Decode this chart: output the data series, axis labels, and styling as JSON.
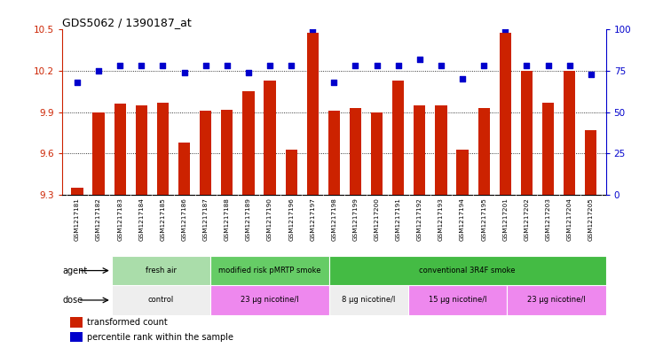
{
  "title": "GDS5062 / 1390187_at",
  "samples": [
    "GSM1217181",
    "GSM1217182",
    "GSM1217183",
    "GSM1217184",
    "GSM1217185",
    "GSM1217186",
    "GSM1217187",
    "GSM1217188",
    "GSM1217189",
    "GSM1217190",
    "GSM1217196",
    "GSM1217197",
    "GSM1217198",
    "GSM1217199",
    "GSM1217200",
    "GSM1217191",
    "GSM1217192",
    "GSM1217193",
    "GSM1217194",
    "GSM1217195",
    "GSM1217201",
    "GSM1217202",
    "GSM1217203",
    "GSM1217204",
    "GSM1217205"
  ],
  "bar_values": [
    9.35,
    9.9,
    9.96,
    9.95,
    9.97,
    9.68,
    9.91,
    9.92,
    10.05,
    10.13,
    9.63,
    10.48,
    9.91,
    9.93,
    9.9,
    10.13,
    9.95,
    9.95,
    9.63,
    9.93,
    10.48,
    10.2,
    9.97,
    10.2,
    9.77
  ],
  "percentile_values": [
    68,
    75,
    78,
    78,
    78,
    74,
    78,
    78,
    74,
    78,
    78,
    100,
    68,
    78,
    78,
    78,
    82,
    78,
    70,
    78,
    100,
    78,
    78,
    78,
    73
  ],
  "bar_color": "#CC2200",
  "percentile_color": "#0000CC",
  "ylim_left": [
    9.3,
    10.5
  ],
  "ylim_right": [
    0,
    100
  ],
  "yticks_left": [
    9.3,
    9.6,
    9.9,
    10.2,
    10.5
  ],
  "yticks_right": [
    0,
    25,
    50,
    75,
    100
  ],
  "grid_values": [
    9.6,
    9.9,
    10.2
  ],
  "agent_groups": [
    {
      "label": "fresh air",
      "start": 0,
      "end": 5,
      "color": "#AADDAA"
    },
    {
      "label": "modified risk pMRTP smoke",
      "start": 5,
      "end": 11,
      "color": "#66CC66"
    },
    {
      "label": "conventional 3R4F smoke",
      "start": 11,
      "end": 25,
      "color": "#44BB44"
    }
  ],
  "dose_groups": [
    {
      "label": "control",
      "start": 0,
      "end": 5,
      "color": "#EEEEEE"
    },
    {
      "label": "23 μg nicotine/l",
      "start": 5,
      "end": 11,
      "color": "#EE88EE"
    },
    {
      "label": "8 μg nicotine/l",
      "start": 11,
      "end": 15,
      "color": "#EEEEEE"
    },
    {
      "label": "15 μg nicotine/l",
      "start": 15,
      "end": 20,
      "color": "#EE88EE"
    },
    {
      "label": "23 μg nicotine/l",
      "start": 20,
      "end": 25,
      "color": "#EE88EE"
    }
  ],
  "legend_bar_label": "transformed count",
  "legend_pct_label": "percentile rank within the sample",
  "agent_label": "agent",
  "dose_label": "dose",
  "xtick_bg": "#DDDDDD",
  "fig_width": 7.38,
  "fig_height": 3.93
}
